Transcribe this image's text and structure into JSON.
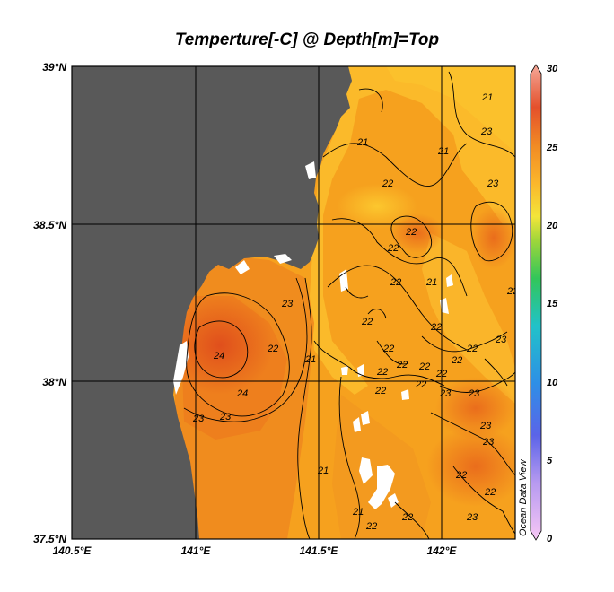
{
  "title": "Temperture[-C] @ Depth[m]=Top",
  "watermark": "Ocean Data View",
  "axes": {
    "x_ticks": [
      "140.5°E",
      "141°E",
      "141.5°E",
      "142°E"
    ],
    "y_ticks": [
      "39°N",
      "38.5°N",
      "38°N",
      "37.5°N"
    ]
  },
  "colorbar": {
    "ticks": [
      "30",
      "25",
      "20",
      "15",
      "10",
      "5",
      "0"
    ],
    "range": [
      0,
      30
    ]
  },
  "contour_labels": [
    "21",
    "21",
    "23",
    "22",
    "21",
    "23",
    "22",
    "22",
    "21",
    "22",
    "24",
    "23",
    "22",
    "22",
    "21",
    "22",
    "22",
    "23",
    "22",
    "24",
    "23",
    "23",
    "22",
    "22",
    "22",
    "23",
    "21",
    "21",
    "22",
    "22",
    "23",
    "22",
    "22",
    "23",
    "23",
    "22",
    "22",
    "23",
    "22",
    "22",
    "22"
  ],
  "colors": {
    "land": "#595959",
    "sea_cool": "#fbc02a",
    "sea_mid": "#f9a51c",
    "sea_warm": "#ef7a1a",
    "sea_hot": "#e45a1e",
    "missing": "#ffffff"
  }
}
